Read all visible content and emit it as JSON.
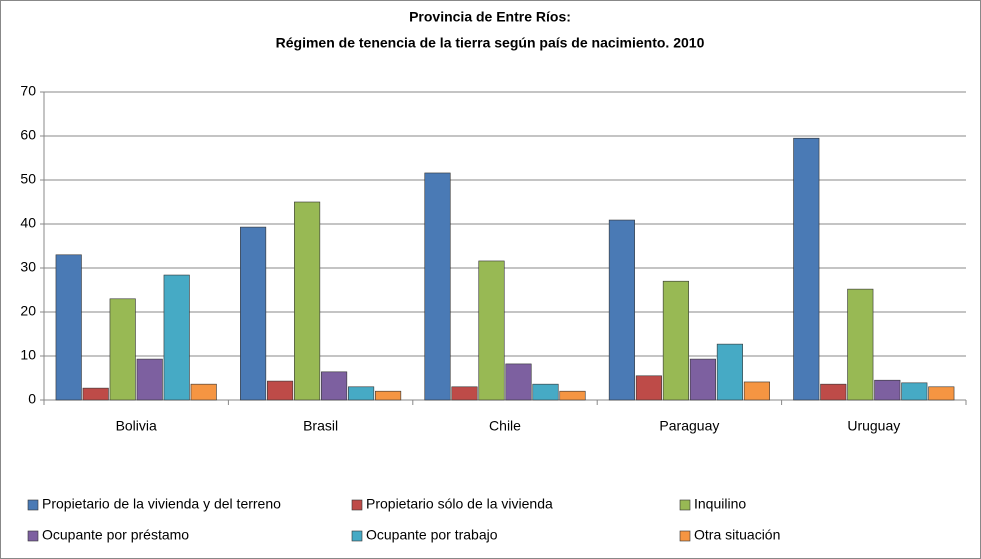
{
  "chart_data": {
    "type": "bar",
    "title": "Provincia de Entre Ríos:",
    "subtitle": "Régimen de tenencia de la tierra según país de nacimiento. 2010",
    "categories": [
      "Bolivia",
      "Brasil",
      "Chile",
      "Paraguay",
      "Uruguay"
    ],
    "series": [
      {
        "name": "Propietario de la vivienda y del terreno",
        "color": "#4a7ab5",
        "values": [
          33,
          39.3,
          51.6,
          40.9,
          59.5
        ]
      },
      {
        "name": "Propietario sólo de la vivienda",
        "color": "#be4b48",
        "values": [
          2.7,
          4.3,
          3,
          5.5,
          3.6
        ]
      },
      {
        "name": "Inquilino",
        "color": "#98b954",
        "values": [
          23,
          45,
          31.6,
          27,
          25.2
        ]
      },
      {
        "name": "Ocupante por préstamo",
        "color": "#7d60a0",
        "values": [
          9.3,
          6.4,
          8.2,
          9.3,
          4.5
        ]
      },
      {
        "name": "Ocupante por trabajo",
        "color": "#46aac5",
        "values": [
          28.4,
          3,
          3.6,
          12.7,
          3.9
        ]
      },
      {
        "name": "Otra situación",
        "color": "#f59542",
        "values": [
          3.6,
          2,
          2,
          4.1,
          3
        ]
      }
    ],
    "ylim": [
      0,
      70
    ],
    "yticks": [
      0,
      10,
      20,
      30,
      40,
      50,
      60,
      70
    ],
    "grid": true,
    "legend": "bottom"
  }
}
